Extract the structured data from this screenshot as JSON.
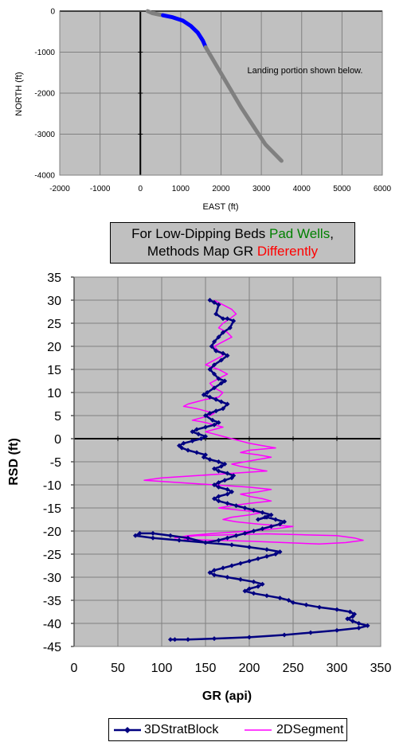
{
  "chart_data": [
    {
      "type": "scatter",
      "title": "",
      "xlabel": "EAST (ft)",
      "ylabel": "NORTH (ft)",
      "xlim": [
        -2000,
        6000
      ],
      "ylim": [
        -4000,
        0
      ],
      "xticks": [
        -2000,
        -1000,
        0,
        1000,
        2000,
        3000,
        4000,
        5000,
        6000
      ],
      "yticks": [
        0,
        -1000,
        -2000,
        -3000,
        -4000
      ],
      "grid": true,
      "annotation": "Landing portion shown below.",
      "series": [
        {
          "color": "#808080",
          "x": [
            180,
            300,
            450,
            560
          ],
          "y": [
            0,
            -50,
            -80,
            -100
          ]
        },
        {
          "color": "#0000ff",
          "x": [
            560,
            800,
            1050,
            1250,
            1420,
            1550,
            1620
          ],
          "y": [
            -100,
            -150,
            -230,
            -360,
            -520,
            -720,
            -880
          ]
        },
        {
          "color": "#808080",
          "x": [
            1620,
            1900,
            2200,
            2500,
            2800,
            3100,
            3500
          ],
          "y": [
            -880,
            -1350,
            -1850,
            -2350,
            -2800,
            -3250,
            -3650
          ]
        }
      ]
    },
    {
      "type": "line",
      "title": "",
      "xlabel": "GR (api)",
      "ylabel": "RSD (ft)",
      "xlim": [
        0,
        350
      ],
      "ylim": [
        -45,
        35
      ],
      "xticks": [
        0,
        50,
        100,
        150,
        200,
        250,
        300,
        350
      ],
      "yticks": [
        35,
        30,
        25,
        20,
        15,
        10,
        5,
        0,
        -5,
        -10,
        -15,
        -20,
        -25,
        -30,
        -35,
        -40,
        -45
      ],
      "grid": true,
      "legend": "bottom",
      "series": [
        {
          "name": "3DStratBlock",
          "color": "#000080",
          "marker": "diamond",
          "x": [
            155,
            160,
            165,
            162,
            170,
            175,
            182,
            178,
            170,
            165,
            160,
            157,
            162,
            170,
            175,
            168,
            160,
            155,
            160,
            165,
            172,
            168,
            160,
            152,
            148,
            155,
            162,
            168,
            175,
            170,
            162,
            155,
            150,
            158,
            165,
            160,
            150,
            140,
            135,
            142,
            150,
            145,
            135,
            125,
            120,
            123,
            130,
            140,
            150,
            148,
            155,
            165,
            172,
            168,
            160,
            165,
            175,
            182,
            180,
            172,
            165,
            160,
            165,
            175,
            180,
            175,
            165,
            160,
            165,
            175,
            185,
            195,
            205,
            215,
            225,
            218,
            210,
            220,
            230,
            240,
            235,
            225,
            215,
            205,
            195,
            185,
            175,
            165,
            150,
            130,
            110,
            90,
            75,
            70,
            90,
            120,
            150,
            180,
            200,
            220,
            235,
            230,
            220,
            210,
            200,
            190,
            180,
            170,
            160,
            155,
            160,
            175,
            190,
            205,
            215,
            210,
            200,
            195,
            205,
            220,
            235,
            245,
            250,
            265,
            280,
            300,
            315,
            320,
            318,
            312,
            318,
            325,
            335,
            325,
            300,
            270,
            240,
            200,
            160,
            130,
            115,
            110
          ],
          "y": [
            30,
            29.5,
            29,
            27,
            26,
            26,
            25.5,
            24,
            23,
            22,
            21,
            20,
            19,
            18.5,
            18,
            17,
            16,
            15,
            14,
            13,
            12.5,
            12,
            11,
            10,
            9.5,
            9,
            8.5,
            8,
            7.5,
            6.5,
            6,
            5.5,
            5,
            4,
            3.5,
            3,
            2.5,
            2,
            1.5,
            1,
            0.5,
            0,
            -0.5,
            -1,
            -1.5,
            -2,
            -2.5,
            -3,
            -3.5,
            -4,
            -4.5,
            -5,
            -5.5,
            -6,
            -6.5,
            -7,
            -7.5,
            -8,
            -8.5,
            -9,
            -9.5,
            -10,
            -10.5,
            -11,
            -11.5,
            -12,
            -12.5,
            -13,
            -13.5,
            -14,
            -14.5,
            -15,
            -15.5,
            -16,
            -16.5,
            -17,
            -17.5,
            -17,
            -17.5,
            -18,
            -18.5,
            -19,
            -19.5,
            -20,
            -20.5,
            -21,
            -21.5,
            -22,
            -22.5,
            -21.5,
            -21,
            -20.5,
            -20.5,
            -21,
            -21.5,
            -22,
            -22.5,
            -23,
            -23.5,
            -24,
            -24.5,
            -25,
            -25.5,
            -26,
            -26.5,
            -27,
            -27.5,
            -28,
            -28.5,
            -29,
            -29.5,
            -30,
            -30.5,
            -31,
            -31.5,
            -32,
            -32.5,
            -33,
            -33.5,
            -34,
            -34.5,
            -35,
            -35.5,
            -36,
            -36.5,
            -37,
            -37.5,
            -38,
            -38.5,
            -39,
            -39.5,
            -40,
            -40.5,
            -41,
            -41.5,
            -42,
            -42.5,
            -43,
            -43.3,
            -43.5,
            -43.5,
            -43.5
          ],
          "note": "values digitized from plot; approximate"
        },
        {
          "name": "2DSegment",
          "color": "#ff00ff",
          "marker": "none",
          "x": [
            160,
            170,
            180,
            185,
            178,
            170,
            165,
            175,
            180,
            170,
            160,
            165,
            170,
            160,
            150,
            165,
            175,
            165,
            155,
            160,
            170,
            165,
            150,
            140,
            130,
            125,
            140,
            150,
            160,
            155,
            145,
            135,
            150,
            160,
            170,
            160,
            150,
            160,
            170,
            180,
            190,
            200,
            215,
            230,
            200,
            190,
            210,
            225,
            210,
            195,
            180,
            190,
            205,
            220,
            180,
            140,
            100,
            80,
            120,
            160,
            200,
            225,
            210,
            190,
            200,
            215,
            225,
            200,
            180,
            165,
            190,
            215,
            200,
            180,
            170,
            185,
            210,
            250,
            230,
            200,
            160,
            130,
            115,
            140,
            180,
            220,
            260,
            300,
            320,
            330,
            310,
            280,
            240,
            200,
            160,
            125
          ],
          "y": [
            30,
            29,
            28,
            27,
            26,
            25,
            24,
            23,
            22,
            21,
            20,
            19,
            18,
            17,
            16,
            15,
            14,
            13,
            12,
            11,
            10,
            9,
            8.5,
            8,
            7.5,
            7,
            6.5,
            6,
            5.5,
            5,
            4.5,
            4,
            3.5,
            3,
            2.5,
            2,
            1.5,
            1,
            0.5,
            0,
            -0.5,
            -1,
            -1.5,
            -2,
            -2.5,
            -3,
            -3.5,
            -4,
            -4.5,
            -5,
            -5.5,
            -6,
            -6.5,
            -7,
            -7.5,
            -8,
            -8.5,
            -9,
            -9.5,
            -10,
            -10.5,
            -11,
            -11.5,
            -12,
            -12.5,
            -13,
            -13.5,
            -14,
            -14.5,
            -15,
            -15.5,
            -16,
            -16.5,
            -17,
            -17.5,
            -18,
            -18.5,
            -19,
            -19.5,
            -20,
            -20.5,
            -21,
            -21.5,
            -21,
            -20.8,
            -20.6,
            -20.8,
            -21,
            -21.5,
            -22,
            -22.5,
            -22.8,
            -22.5,
            -22.2,
            -22,
            -21.8
          ],
          "note": "values digitized from plot; approximate"
        }
      ]
    }
  ],
  "note_box": {
    "line1_a": "For Low-Dipping Beds ",
    "line1_b": "Pad Wells",
    "line1_c": ",",
    "line2_a": "Methods Map GR ",
    "line2_b": "Differently",
    "color_b1": "#008000",
    "color_b2": "#ff0000"
  },
  "legend": {
    "item1": "3DStratBlock",
    "item2": "2DSegment"
  }
}
